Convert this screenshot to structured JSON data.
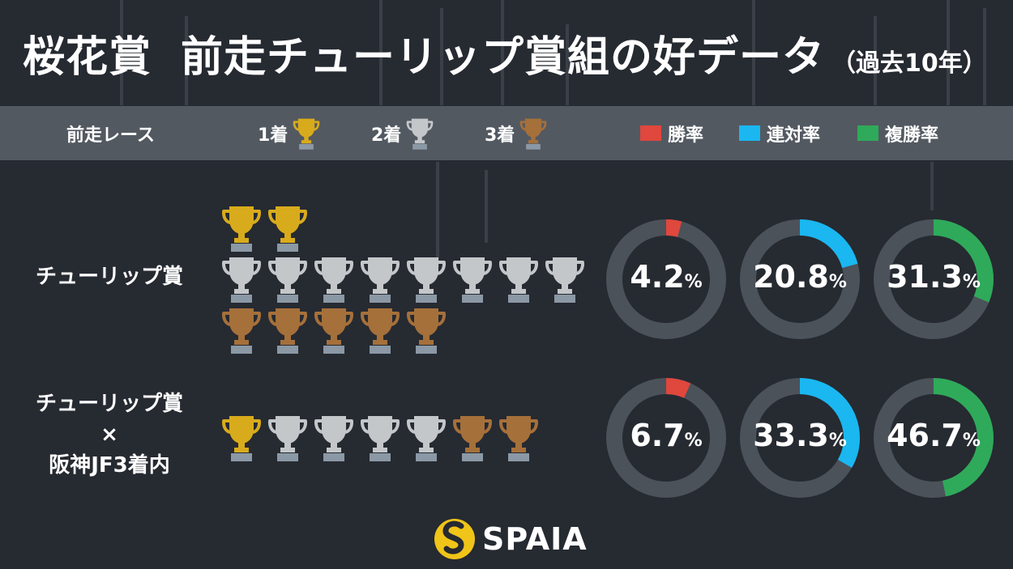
{
  "title": {
    "main_left": "桜花賞",
    "main_right": "前走チューリップ賞組の好データ",
    "sub": "（過去10年）"
  },
  "legend": {
    "race_label": "前走レース",
    "places": [
      {
        "label": "1着",
        "icon": "gold-trophy-icon"
      },
      {
        "label": "2着",
        "icon": "silver-trophy-icon"
      },
      {
        "label": "3着",
        "icon": "bronze-trophy-icon"
      }
    ],
    "rates": [
      {
        "label": "勝率",
        "color": "#e0473d"
      },
      {
        "label": "連対率",
        "color": "#1ab7f0"
      },
      {
        "label": "複勝率",
        "color": "#2faa5a"
      }
    ]
  },
  "colors": {
    "gold": "#d8ab1c",
    "silver": "#c4c7ca",
    "bronze": "#a5703a",
    "ring_bg": "#4b525a"
  },
  "chart_data": {
    "type": "donut",
    "series_names": [
      "勝率",
      "連対率",
      "複勝率"
    ],
    "unit": "%",
    "rows": [
      {
        "label": [
          "チューリップ賞"
        ],
        "first": 2,
        "second": 8,
        "third": 5,
        "rates": [
          4.2,
          20.8,
          31.3
        ]
      },
      {
        "label": [
          "チューリップ賞",
          "×",
          "阪神JF3着内"
        ],
        "first": 1,
        "second": 4,
        "third": 2,
        "rates": [
          6.7,
          33.3,
          46.7
        ]
      }
    ]
  },
  "logo": {
    "text": "SPAIA"
  }
}
